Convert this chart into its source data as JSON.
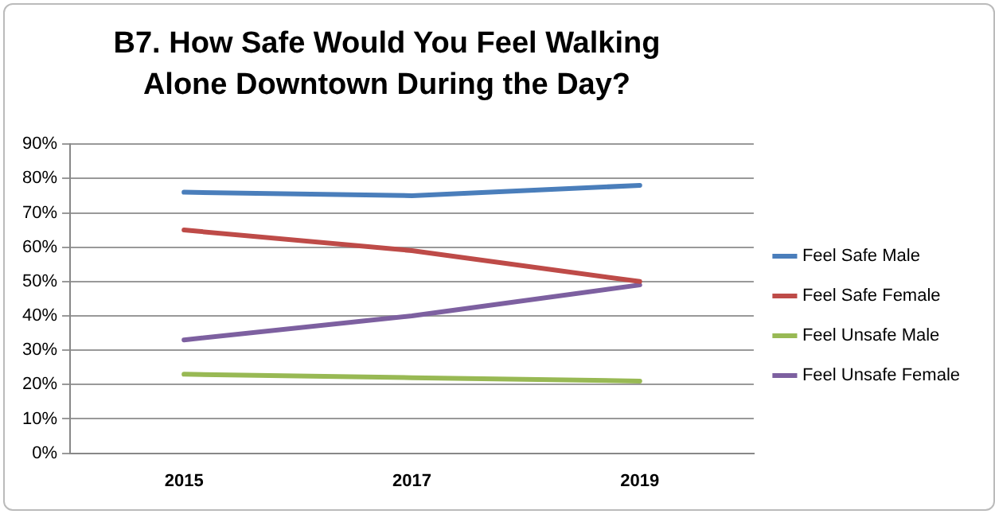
{
  "chart_data": {
    "type": "line",
    "title": "B7. How Safe Would You Feel Walking Alone Downtown During the Day?",
    "categories": [
      "2015",
      "2017",
      "2019"
    ],
    "series": [
      {
        "name": "Feel Safe Male",
        "color": "#4a7ebb",
        "values": [
          76,
          75,
          78
        ]
      },
      {
        "name": "Feel Safe Female",
        "color": "#be4b48",
        "values": [
          65,
          59,
          50
        ]
      },
      {
        "name": "Feel Unsafe Male",
        "color": "#98b954",
        "values": [
          23,
          22,
          21
        ]
      },
      {
        "name": "Feel Unsafe Female",
        "color": "#7d60a0",
        "values": [
          33,
          40,
          49
        ]
      }
    ],
    "ylim": [
      0,
      90
    ],
    "yticks": [
      {
        "value": 0,
        "label": "0%"
      },
      {
        "value": 10,
        "label": "10%"
      },
      {
        "value": 20,
        "label": "20%"
      },
      {
        "value": 30,
        "label": "30%"
      },
      {
        "value": 40,
        "label": "40%"
      },
      {
        "value": 50,
        "label": "50%"
      },
      {
        "value": 60,
        "label": "60%"
      },
      {
        "value": 70,
        "label": "70%"
      },
      {
        "value": 80,
        "label": "80%"
      },
      {
        "value": 90,
        "label": "90%"
      }
    ],
    "grid": "y",
    "legend": "right",
    "marker": "none",
    "line_style": "solid"
  }
}
